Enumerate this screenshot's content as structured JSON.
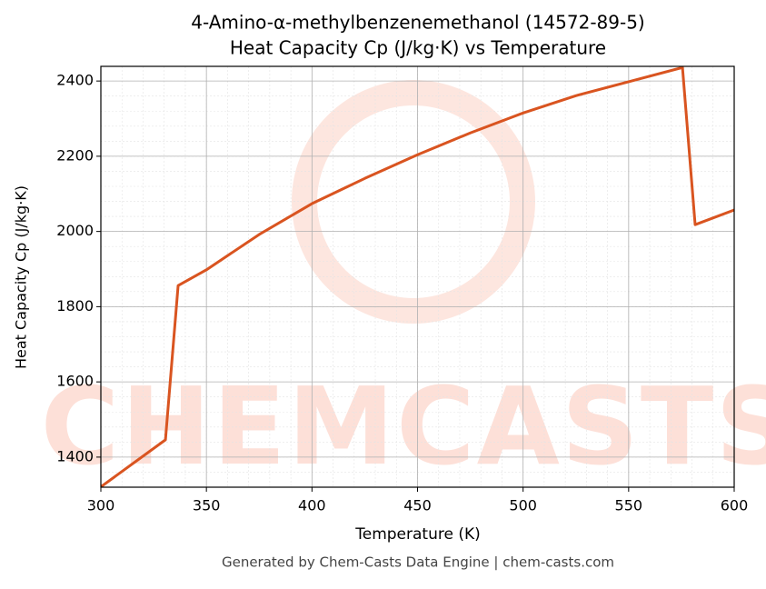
{
  "chart_data": {
    "type": "line",
    "title": "4-Amino-α-methylbenzenemethanol (14572-89-5)",
    "subtitle": "Heat Capacity Cp (J/kg·K) vs Temperature",
    "x_label": "Temperature (K)",
    "y_label": "Heat Capacity Cp (J/kg·K)",
    "footer": "Generated by Chem-Casts Data Engine | chem-casts.com",
    "watermark": "CHEMCASTS",
    "x": [
      300,
      330.6,
      336.6,
      350,
      375,
      400,
      425,
      450,
      475,
      500,
      525,
      550,
      575.5,
      581.5,
      600
    ],
    "series": [
      {
        "name": "Cp",
        "color": "#d95420",
        "values": [
          1321,
          1446,
          1856,
          1898,
          1992,
          2074,
          2141,
          2204,
          2262,
          2315,
          2361,
          2398,
          2436,
          2018,
          2057
        ]
      }
    ],
    "xlim": [
      300,
      600
    ],
    "xticks": [
      300,
      350,
      400,
      450,
      500,
      550,
      600
    ],
    "ylim": [
      1320,
      2439
    ],
    "yticks": [
      1400,
      1600,
      1800,
      2000,
      2200,
      2400
    ],
    "grid": true,
    "minor_grid": true
  }
}
